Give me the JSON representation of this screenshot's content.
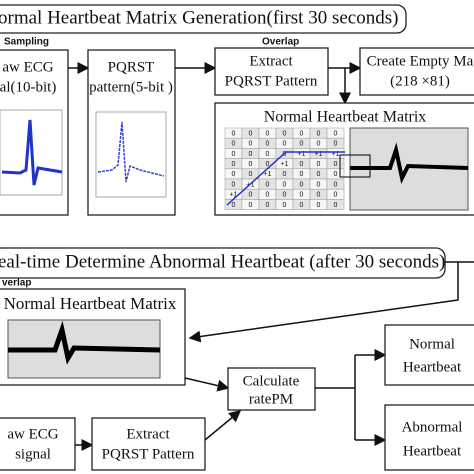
{
  "top": {
    "title": "ormal Heartbeat Matrix Generation(first 30 seconds)",
    "sampling_label": "Sampling",
    "overlap_label": "Overlap",
    "raw_ecg": [
      "aw ECG",
      "al(10-bit)"
    ],
    "pqrst_pattern": [
      "PQRST",
      "pattern(5-bit )"
    ],
    "extract": [
      "Extract",
      "PQRST Pattern"
    ],
    "create_matrix": [
      "Create Empty Ma",
      "(218 ×81)"
    ],
    "matrix_title": "Normal Heartbeat Matrix",
    "grid": [
      [
        "0",
        "0",
        "0",
        "0",
        "0",
        "0",
        "0"
      ],
      [
        "0",
        "0",
        "0",
        "0",
        "0",
        "0",
        "0"
      ],
      [
        "0",
        "0",
        "0",
        "0",
        "+1",
        "+1",
        "+1"
      ],
      [
        "0",
        "0",
        "0",
        "+1",
        "0",
        "0",
        "0"
      ],
      [
        "0",
        "0",
        "+1",
        "0",
        "0",
        "0",
        "0"
      ],
      [
        "0",
        "+1",
        "0",
        "0",
        "0",
        "0",
        "0"
      ],
      [
        "+1",
        "0",
        "0",
        "0",
        "0",
        "0",
        "0"
      ],
      [
        "0",
        "0",
        "0",
        "0",
        "0",
        "0",
        "0"
      ]
    ]
  },
  "bottom": {
    "title": "eal-time Determine Abnormal Heartbeat (after 30 seconds)",
    "overlap_label": "verlap",
    "matrix_title": "Normal Heartbeat Matrix",
    "calculate": [
      "Calculate",
      "ratePM"
    ],
    "normal": [
      "Normal",
      "Heartbeat"
    ],
    "abnormal": [
      "Abnormal",
      "Heartbeat"
    ],
    "raw_ecg": [
      "aw ECG",
      "signal"
    ],
    "extract": [
      "Extract",
      "PQRST Pattern"
    ]
  }
}
